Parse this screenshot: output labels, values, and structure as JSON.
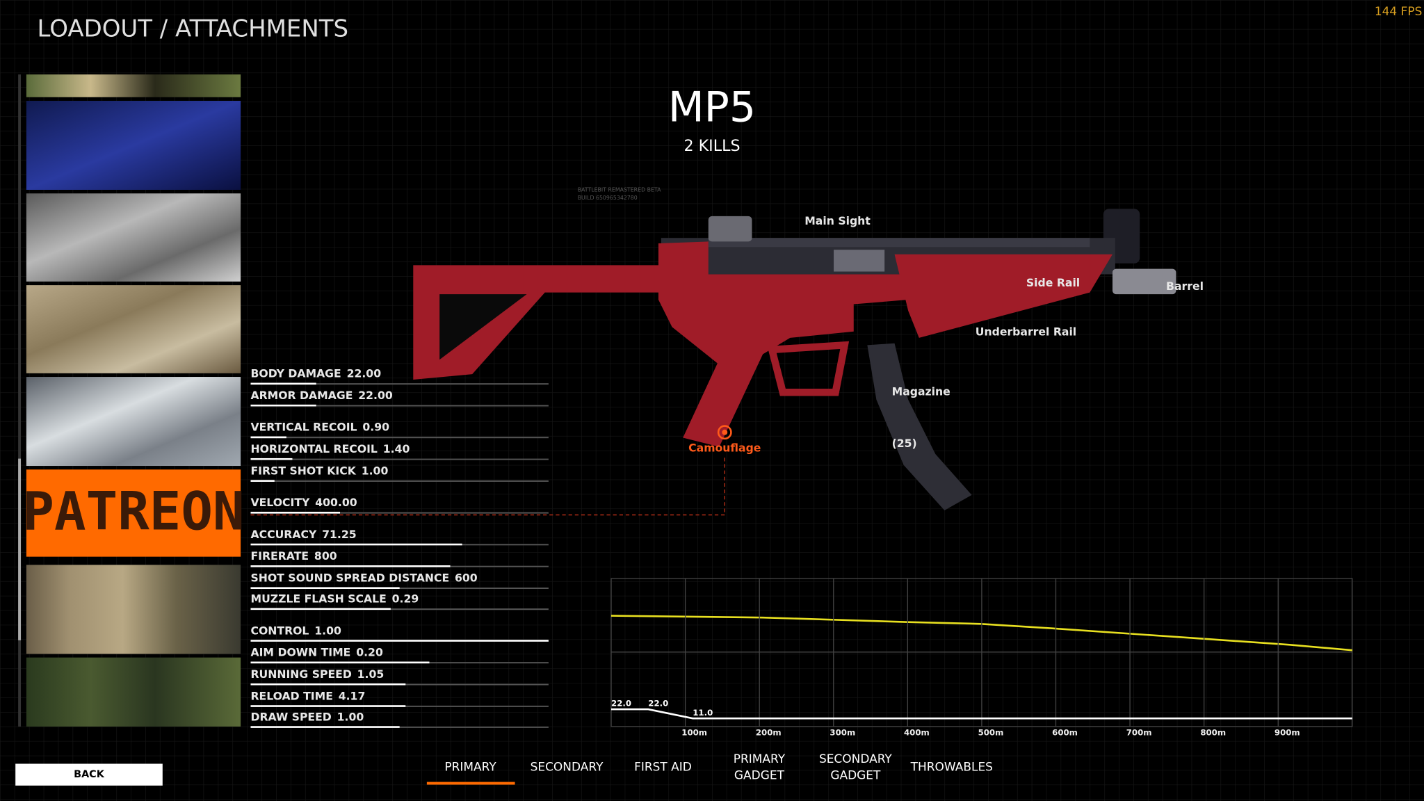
{
  "header": {
    "title": "LOADOUT / ATTACHMENTS",
    "fps": "144 FPS"
  },
  "weapon": {
    "name": "MP5",
    "kills": "2 KILLS",
    "build": [
      "BATTLEBIT REMASTERED BETA",
      "BUILD 650965342780"
    ]
  },
  "attachments": {
    "main_sight": "Main Sight",
    "side_rail": "Side Rail",
    "barrel": "Barrel",
    "underbarrel": "Underbarrel Rail",
    "magazine": "Magazine",
    "magazine_size": "(25)",
    "camouflage": "Camouflage"
  },
  "patreon": "PATREON",
  "stats": [
    {
      "label": "BODY DAMAGE",
      "value": "22.00",
      "fill": 0.22
    },
    {
      "label": "ARMOR DAMAGE",
      "value": "22.00",
      "fill": 0.22
    },
    {
      "label": "VERTICAL RECOIL",
      "value": "0.90",
      "fill": 0.12
    },
    {
      "label": "HORIZONTAL RECOIL",
      "value": "1.40",
      "fill": 0.14
    },
    {
      "label": "FIRST SHOT KICK",
      "value": "1.00",
      "fill": 0.08
    },
    {
      "label": "VELOCITY",
      "value": "400.00",
      "fill": 0.3
    },
    {
      "label": "ACCURACY",
      "value": "71.25",
      "fill": 0.71
    },
    {
      "label": "FIRERATE",
      "value": "800",
      "fill": 0.67
    },
    {
      "label": "SHOT SOUND SPREAD DISTANCE",
      "value": "600",
      "fill": 0.5
    },
    {
      "label": "MUZZLE FLASH SCALE",
      "value": "0.29",
      "fill": 0.47
    },
    {
      "label": "CONTROL",
      "value": "1.00",
      "fill": 1.0
    },
    {
      "label": "AIM DOWN TIME",
      "value": "0.20",
      "fill": 0.6
    },
    {
      "label": "RUNNING SPEED",
      "value": "1.05",
      "fill": 0.52
    },
    {
      "label": "RELOAD TIME",
      "value": "4.17",
      "fill": 0.52
    },
    {
      "label": "DRAW SPEED",
      "value": "1.00",
      "fill": 0.5
    }
  ],
  "falloff_chart": {
    "xlim": [
      0,
      1000
    ],
    "xticks": [
      {
        "value": 100,
        "label": "100m"
      },
      {
        "value": 200,
        "label": "200m"
      },
      {
        "value": 300,
        "label": "300m"
      },
      {
        "value": 400,
        "label": "400m"
      },
      {
        "value": 500,
        "label": "500m"
      },
      {
        "value": 600,
        "label": "600m"
      },
      {
        "value": 700,
        "label": "700m"
      },
      {
        "value": 800,
        "label": "800m"
      },
      {
        "value": 900,
        "label": "900m"
      }
    ],
    "x": [
      0,
      50,
      110,
      1000
    ],
    "values": [
      22,
      22,
      11,
      11
    ],
    "value_labels": [
      "22.0",
      "22.0",
      "11.0",
      null
    ]
  },
  "tabs": [
    "PRIMARY",
    "SECONDARY",
    "FIRST AID",
    [
      "PRIMARY",
      "GADGET"
    ],
    [
      "SECONDARY",
      "GADGET"
    ],
    "THROWABLES"
  ],
  "back": "BACK"
}
